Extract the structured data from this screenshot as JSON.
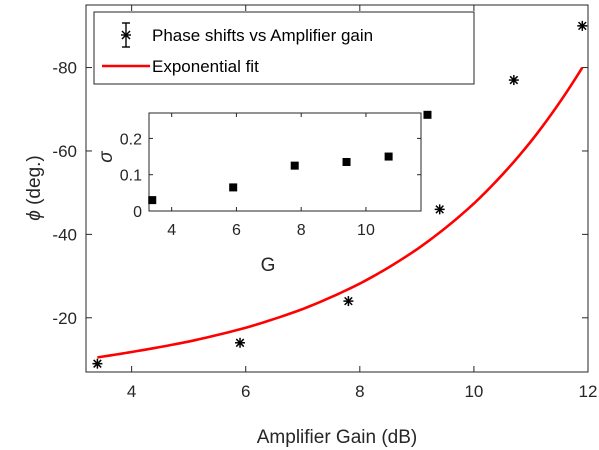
{
  "chart_data": [
    {
      "type": "scatter",
      "xlabel": "Amplifier Gain (dB)",
      "ylabel_symbol": "ϕ",
      "ylabel_text": " (deg.)",
      "xlim": [
        3.2,
        12.0
      ],
      "ylim": [
        -7,
        -95
      ],
      "y_reversed": true,
      "xticks": [
        4,
        6,
        8,
        10,
        12
      ],
      "xtick_labels": [
        "4",
        "6",
        "8",
        "10",
        "12"
      ],
      "yticks": [
        -20,
        -40,
        -60,
        -80
      ],
      "ytick_labels": [
        "-20",
        "-40",
        "-60",
        "-80"
      ],
      "grid": false,
      "legend": {
        "placement": "top-left",
        "entries": [
          "Phase shifts vs Amplifier gain",
          "Exponential fit"
        ]
      },
      "series": [
        {
          "name": "Phase shifts vs Amplifier gain",
          "kind": "errorbar-points",
          "marker": "asterisk",
          "color": "#000000",
          "x": [
            3.4,
            5.9,
            7.8,
            9.4,
            10.7,
            11.9
          ],
          "y": [
            -9,
            -14,
            -24,
            -46,
            -77,
            -90
          ]
        },
        {
          "name": "Exponential fit",
          "kind": "line",
          "color": "#ff0000",
          "model": "exponential",
          "x": [
            3.4,
            4.0,
            5.0,
            6.0,
            7.0,
            8.0,
            9.0,
            10.0,
            11.0,
            11.9
          ],
          "y": [
            -10.5,
            -11.8,
            -14.3,
            -17.6,
            -22.1,
            -28.2,
            -36.4,
            -47.4,
            -62.3,
            -80.0
          ]
        }
      ]
    },
    {
      "type": "scatter",
      "xlabel": "G",
      "ylabel": "σ",
      "xlim": [
        3.3,
        11.7
      ],
      "ylim": [
        0,
        0.27
      ],
      "xticks": [
        4,
        6,
        8,
        10
      ],
      "xtick_labels": [
        "4",
        "6",
        "8",
        "10"
      ],
      "yticks": [
        0,
        0.1,
        0.2
      ],
      "ytick_labels": [
        "0",
        "0.1",
        "0.2"
      ],
      "grid": false,
      "series": [
        {
          "marker": "square",
          "color": "#000000",
          "x": [
            3.4,
            5.9,
            7.8,
            9.4,
            10.7,
            11.9
          ],
          "y": [
            0.03,
            0.065,
            0.125,
            0.135,
            0.15,
            0.265
          ]
        }
      ]
    }
  ]
}
